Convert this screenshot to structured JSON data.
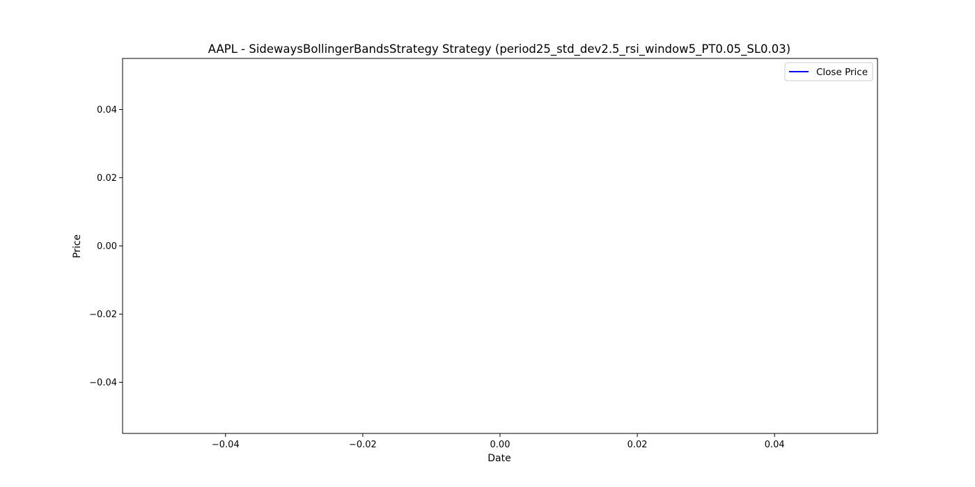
{
  "chart_data": {
    "type": "line",
    "title": "AAPL - SidewaysBollingerBandsStrategy Strategy (period25_std_dev2.5_rsi_window5_PT0.05_SL0.03)",
    "xlabel": "Date",
    "ylabel": "Price",
    "xlim": [
      -0.055,
      0.055
    ],
    "ylim": [
      -0.055,
      0.055
    ],
    "x_ticks": [
      -0.04,
      -0.02,
      0.0,
      0.02,
      0.04
    ],
    "x_tick_labels": [
      "−0.04",
      "−0.02",
      "0.00",
      "0.02",
      "0.04"
    ],
    "y_ticks": [
      0.04,
      0.02,
      0.0,
      -0.02,
      -0.04
    ],
    "y_tick_labels": [
      "0.04",
      "0.02",
      "0.00",
      "−0.02",
      "−0.04"
    ],
    "grid": false,
    "legend_position": "top-right",
    "series": [
      {
        "name": "Close Price",
        "color": "#0000ff",
        "x": [],
        "y": []
      }
    ]
  }
}
